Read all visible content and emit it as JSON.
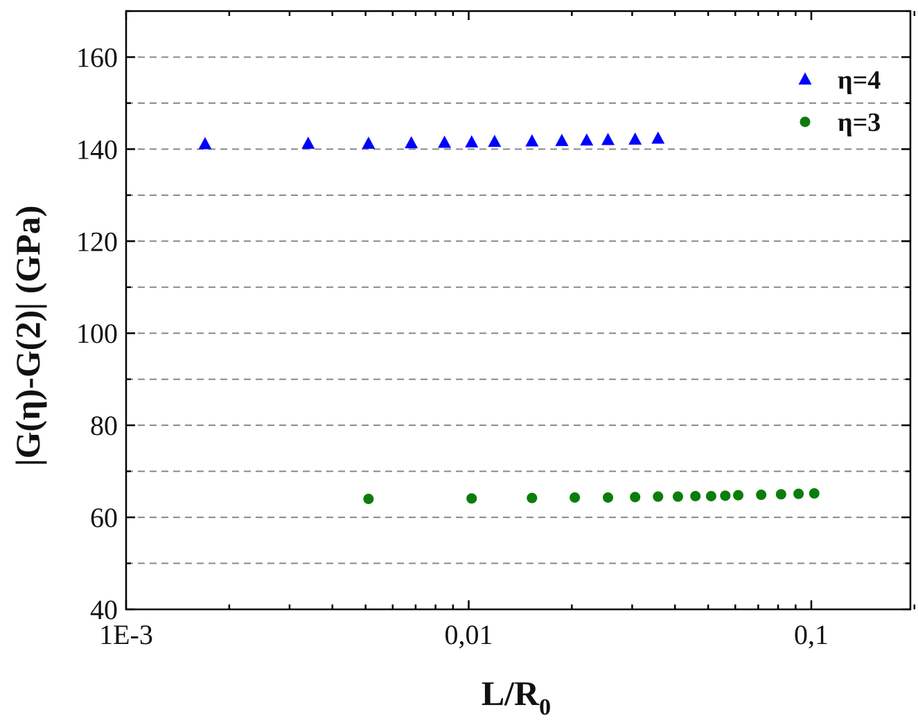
{
  "chart_data": {
    "type": "scatter",
    "xscale": "log",
    "xlim": [
      0.001,
      0.2
    ],
    "ylim": [
      40,
      170
    ],
    "xlabel": "L/R",
    "xlabel_sub": "0",
    "ylabel": "|G(η)-G(2)| (GPa)",
    "x_tick_values": [
      0.001,
      0.01,
      0.1
    ],
    "x_tick_labels": [
      "1E-3",
      "0,01",
      "0,1"
    ],
    "y_ticks": [
      40,
      60,
      80,
      100,
      120,
      140,
      160
    ],
    "grid": "horizontal dashed",
    "legend_position": "top-right",
    "series": [
      {
        "name": "η=4",
        "marker": "triangle",
        "color": "#0000ff",
        "x": [
          0.0017,
          0.0034,
          0.0051,
          0.0068,
          0.0085,
          0.0102,
          0.0119,
          0.0153,
          0.0187,
          0.0221,
          0.0255,
          0.0306,
          0.0357
        ],
        "y": [
          141.2,
          141.3,
          141.3,
          141.4,
          141.5,
          141.6,
          141.7,
          141.8,
          141.9,
          142.0,
          142.1,
          142.2,
          142.4
        ]
      },
      {
        "name": "η=3",
        "marker": "circle",
        "color": "#0b7d0b",
        "x": [
          0.0051,
          0.0102,
          0.0153,
          0.0204,
          0.0255,
          0.0306,
          0.0357,
          0.0408,
          0.0459,
          0.051,
          0.0561,
          0.0612,
          0.0714,
          0.0816,
          0.0918,
          0.102
        ],
        "y": [
          64.0,
          64.1,
          64.2,
          64.3,
          64.3,
          64.4,
          64.5,
          64.5,
          64.6,
          64.6,
          64.7,
          64.8,
          64.9,
          65.0,
          65.1,
          65.2
        ]
      }
    ]
  }
}
